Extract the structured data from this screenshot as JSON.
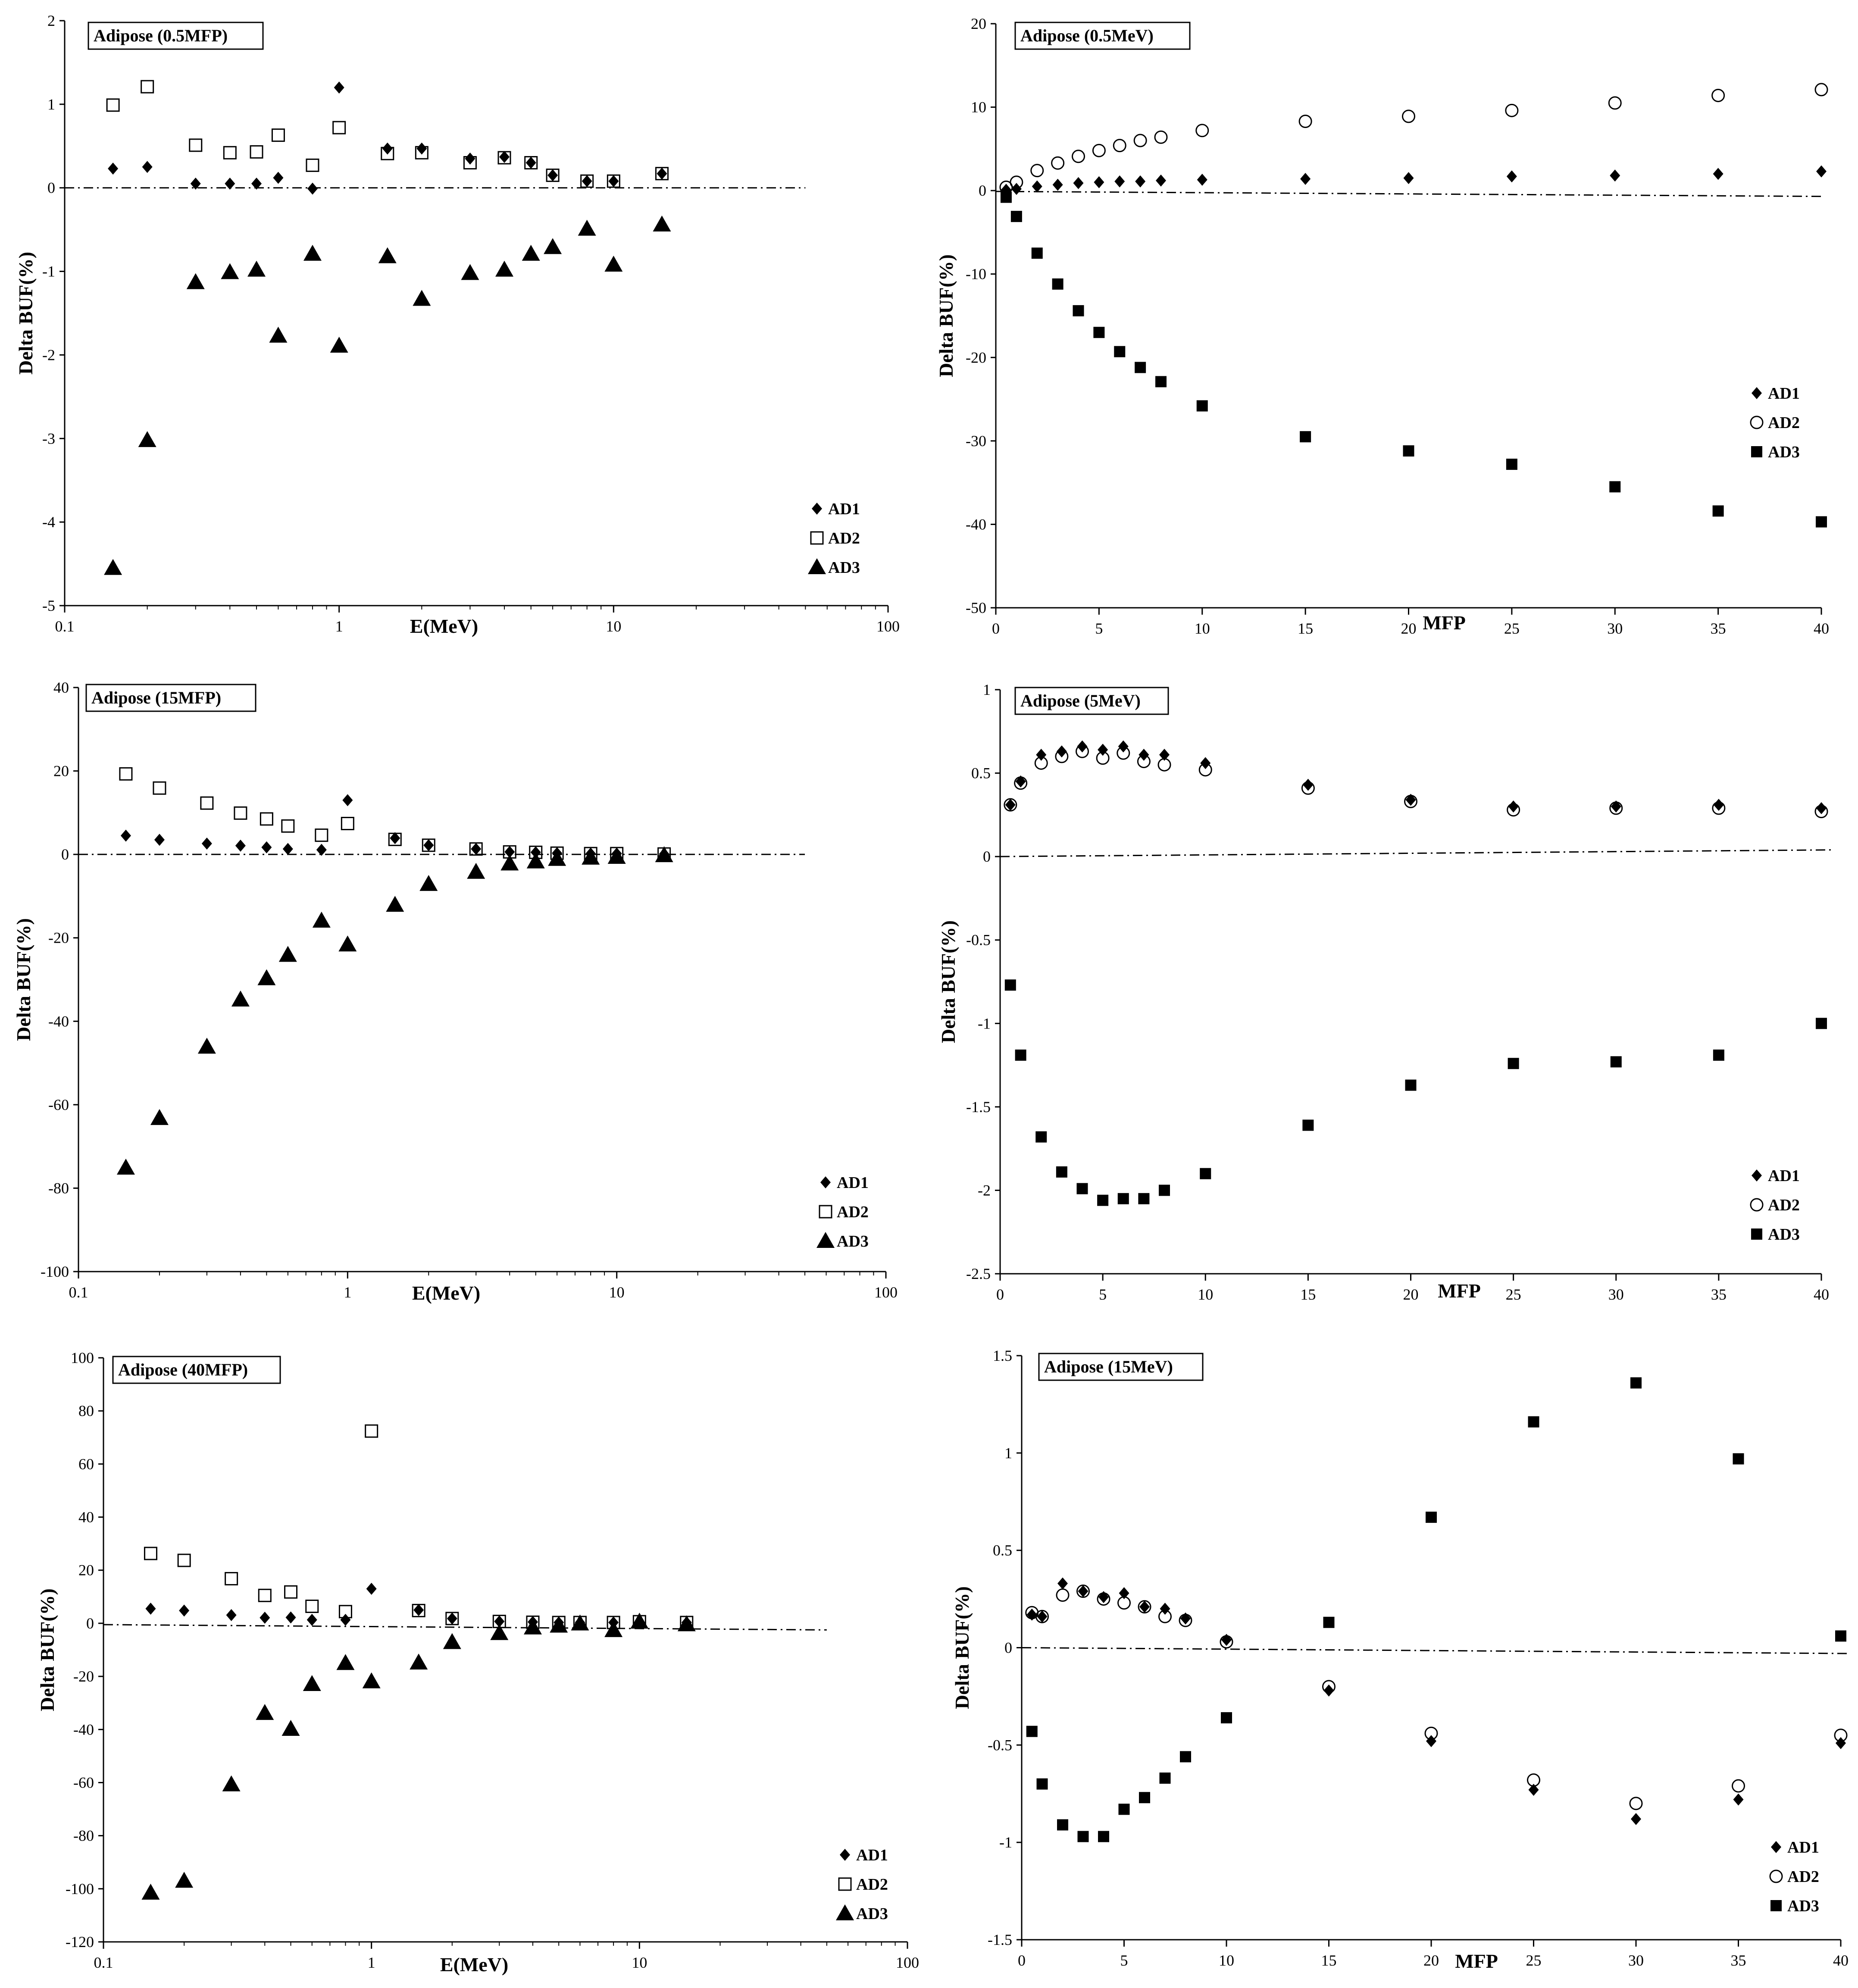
{
  "chart_data": [
    {
      "type": "scatter",
      "title": "Adipose (0.5MFP)",
      "xlabel": "E(MeV)",
      "ylabel": "Delta BUF(%)",
      "xscale": "log",
      "xlim": [
        0.1,
        100
      ],
      "ylim": [
        -5,
        2
      ],
      "xticks": [
        0.1,
        1,
        10,
        100
      ],
      "xtick_labels": [
        "0.1",
        "1",
        "10",
        "100"
      ],
      "yticks": [
        2,
        1,
        0,
        -1,
        -2,
        -3,
        -4,
        -5
      ],
      "ytick_labels": [
        "2",
        "1",
        "0",
        "-1",
        "-2",
        "-3",
        "-4",
        "-5"
      ],
      "x": [
        0.15,
        0.2,
        0.3,
        0.4,
        0.5,
        0.6,
        0.8,
        1,
        1.5,
        2,
        3,
        4,
        5,
        6,
        8,
        10,
        15
      ],
      "series": [
        {
          "name": "AD1",
          "marker": "diamond-filled",
          "values": [
            0.23,
            0.25,
            0.05,
            0.05,
            0.05,
            0.12,
            -0.01,
            1.2,
            0.47,
            0.47,
            0.35,
            0.37,
            0.3,
            0.15,
            0.08,
            0.08,
            0.17
          ]
        },
        {
          "name": "AD2",
          "marker": "square-open",
          "values": [
            0.99,
            1.21,
            0.51,
            0.42,
            0.43,
            0.63,
            0.27,
            0.72,
            0.41,
            0.42,
            0.3,
            0.36,
            0.3,
            0.15,
            0.08,
            0.08,
            0.17
          ]
        },
        {
          "name": "AD3",
          "marker": "triangle-filled",
          "values": [
            -4.55,
            -3.02,
            -1.13,
            -1.01,
            -0.98,
            -1.77,
            -0.79,
            -1.89,
            -0.82,
            -1.33,
            -1.02,
            -0.98,
            -0.79,
            -0.71,
            -0.49,
            -0.92,
            -0.44
          ]
        }
      ],
      "reference_line": {
        "style": "dash-dot",
        "y_start": 0,
        "y_end": 0
      },
      "legend": "bottom-right"
    },
    {
      "type": "scatter",
      "title": "Adipose (0.5MeV)",
      "xlabel": "MFP",
      "ylabel": "Delta BUF(%)",
      "xscale": "linear",
      "xlim": [
        0,
        40
      ],
      "ylim": [
        -50,
        20
      ],
      "xticks": [
        0,
        5,
        10,
        15,
        20,
        25,
        30,
        35,
        40
      ],
      "xtick_labels": [
        "0",
        "5",
        "10",
        "15",
        "20",
        "25",
        "30",
        "35",
        "40"
      ],
      "yticks": [
        20,
        10,
        0,
        -10,
        -20,
        -30,
        -40,
        -50
      ],
      "ytick_labels": [
        "20",
        "10",
        "0",
        "-10",
        "-20",
        "-30",
        "-40",
        "-50"
      ],
      "x": [
        0.5,
        1,
        2,
        3,
        4,
        5,
        6,
        7,
        8,
        10,
        15,
        20,
        25,
        30,
        35,
        40
      ],
      "series": [
        {
          "name": "AD1",
          "marker": "diamond-filled",
          "values": [
            0.1,
            0.2,
            0.5,
            0.7,
            0.9,
            1.0,
            1.1,
            1.1,
            1.2,
            1.3,
            1.4,
            1.5,
            1.7,
            1.8,
            2.0,
            2.3
          ]
        },
        {
          "name": "AD2",
          "marker": "circle-open",
          "values": [
            0.4,
            1.0,
            2.4,
            3.3,
            4.1,
            4.8,
            5.4,
            6.0,
            6.4,
            7.2,
            8.3,
            8.9,
            9.6,
            10.5,
            11.4,
            12.1
          ]
        },
        {
          "name": "AD3",
          "marker": "square-filled",
          "values": [
            -0.8,
            -3.1,
            -7.5,
            -11.2,
            -14.4,
            -17.0,
            -19.3,
            -21.2,
            -22.9,
            -25.8,
            -29.5,
            -31.2,
            -32.8,
            -35.5,
            -38.4,
            -39.7
          ]
        }
      ],
      "reference_line": {
        "style": "dash-dot",
        "y_start": -0.1,
        "y_end": -0.7
      },
      "legend": "bottom-right"
    },
    {
      "type": "scatter",
      "title": "Adipose (15MFP)",
      "xlabel": "E(MeV)",
      "ylabel": "Delta BUF(%)",
      "xscale": "log",
      "xlim": [
        0.1,
        100
      ],
      "ylim": [
        -100,
        40
      ],
      "xticks": [
        0.1,
        1,
        10,
        100
      ],
      "xtick_labels": [
        "0.1",
        "1",
        "10",
        "100"
      ],
      "yticks": [
        40,
        20,
        0,
        -20,
        -40,
        -60,
        -80,
        -100
      ],
      "ytick_labels": [
        "40",
        "20",
        "0",
        "-20",
        "-40",
        "-60",
        "-80",
        "-100"
      ],
      "x": [
        0.15,
        0.2,
        0.3,
        0.4,
        0.5,
        0.6,
        0.8,
        1,
        1.5,
        2,
        3,
        4,
        5,
        6,
        8,
        10,
        15
      ],
      "series": [
        {
          "name": "AD1",
          "marker": "diamond-filled",
          "values": [
            4.5,
            3.5,
            2.6,
            2.1,
            1.7,
            1.3,
            1.1,
            13.0,
            3.9,
            2.2,
            1.3,
            0.6,
            0.5,
            0.3,
            0.2,
            0.2,
            0.1
          ]
        },
        {
          "name": "AD2",
          "marker": "square-open",
          "values": [
            19.3,
            15.9,
            12.3,
            9.9,
            8.5,
            6.8,
            4.6,
            7.4,
            3.6,
            2.2,
            1.3,
            0.6,
            0.5,
            0.3,
            0.2,
            0.2,
            0.1
          ]
        },
        {
          "name": "AD3",
          "marker": "triangle-filled",
          "values": [
            -75.1,
            -63.2,
            -46.1,
            -34.8,
            -29.7,
            -24.1,
            -15.9,
            -21.6,
            -12.1,
            -7.1,
            -4.2,
            -2.2,
            -1.7,
            -1.1,
            -0.8,
            -0.6,
            -0.2
          ]
        }
      ],
      "reference_line": {
        "style": "dash-dot",
        "y_start": 0,
        "y_end": 0
      },
      "legend": "bottom-right"
    },
    {
      "type": "scatter",
      "title": "Adipose (5MeV)",
      "xlabel": "MFP",
      "ylabel": "Delta BUF(%)",
      "xscale": "linear",
      "xlim": [
        0,
        40
      ],
      "ylim": [
        -2.5,
        1
      ],
      "xticks": [
        0,
        5,
        10,
        15,
        20,
        25,
        30,
        35,
        40
      ],
      "xtick_labels": [
        "0",
        "5",
        "10",
        "15",
        "20",
        "25",
        "30",
        "35",
        "40"
      ],
      "yticks": [
        1,
        0.5,
        0,
        -0.5,
        -1,
        -1.5,
        -2,
        -2.5
      ],
      "ytick_labels": [
        "1",
        "0.5",
        "0",
        "-0.5",
        "-1",
        "-1.5",
        "-2",
        "-2.5"
      ],
      "x": [
        0.5,
        1,
        2,
        3,
        4,
        5,
        6,
        7,
        8,
        10,
        15,
        20,
        25,
        30,
        35,
        40
      ],
      "series": [
        {
          "name": "AD1",
          "marker": "diamond-filled",
          "values": [
            0.31,
            0.45,
            0.61,
            0.63,
            0.66,
            0.64,
            0.66,
            0.61,
            0.61,
            0.56,
            0.43,
            0.34,
            0.3,
            0.3,
            0.31,
            0.29
          ]
        },
        {
          "name": "AD2",
          "marker": "circle-open",
          "values": [
            0.31,
            0.44,
            0.56,
            0.6,
            0.63,
            0.59,
            0.62,
            0.57,
            0.55,
            0.52,
            0.41,
            0.33,
            0.28,
            0.29,
            0.29,
            0.27
          ]
        },
        {
          "name": "AD3",
          "marker": "square-filled",
          "values": [
            -0.77,
            -1.19,
            -1.68,
            -1.89,
            -1.99,
            -2.06,
            -2.05,
            -2.05,
            -2.0,
            -1.9,
            -1.61,
            -1.37,
            -1.24,
            -1.23,
            -1.19,
            -1.0
          ]
        }
      ],
      "reference_line": {
        "style": "dash-dot",
        "y_start": 0,
        "y_end": 0.04
      },
      "legend": "bottom-right"
    },
    {
      "type": "scatter",
      "title": "Adipose (40MFP)",
      "xlabel": "E(MeV)",
      "ylabel": "Delta BUF(%)",
      "xscale": "log",
      "xlim": [
        0.1,
        100
      ],
      "ylim": [
        -120,
        100
      ],
      "xticks": [
        0.1,
        1,
        10,
        100
      ],
      "xtick_labels": [
        "0.1",
        "1",
        "10",
        "100"
      ],
      "yticks": [
        100,
        80,
        60,
        40,
        20,
        0,
        -20,
        -40,
        -60,
        -80,
        -100,
        -120
      ],
      "ytick_labels": [
        "100",
        "80",
        "60",
        "40",
        "20",
        "0",
        "-20",
        "-40",
        "-60",
        "-80",
        "-100",
        "-120"
      ],
      "x": [
        0.15,
        0.2,
        0.3,
        0.4,
        0.5,
        0.6,
        0.8,
        1,
        1.5,
        2,
        3,
        4,
        5,
        6,
        8,
        10,
        15
      ],
      "series": [
        {
          "name": "AD1",
          "marker": "diamond-filled",
          "values": [
            5.5,
            4.8,
            3.1,
            2.1,
            2.2,
            1.3,
            1.3,
            13.0,
            5.0,
            1.8,
            0.7,
            0.5,
            0.3,
            0.3,
            0.3,
            0.6,
            0.3
          ]
        },
        {
          "name": "AD2",
          "marker": "square-open",
          "values": [
            26.3,
            23.7,
            16.8,
            10.5,
            11.8,
            6.4,
            4.4,
            72.4,
            4.8,
            1.8,
            0.7,
            0.4,
            0.3,
            0.3,
            0.3,
            0.6,
            0.3
          ]
        },
        {
          "name": "AD3",
          "marker": "triangle-filled",
          "values": [
            -101.5,
            -97.0,
            -60.7,
            -33.8,
            -39.8,
            -22.9,
            -15.0,
            -21.9,
            -14.8,
            -7.1,
            -3.7,
            -1.6,
            -0.9,
            -0.1,
            -2.6,
            0.6,
            -0.4
          ]
        }
      ],
      "reference_line": {
        "style": "dash-dot",
        "y_start": -0.5,
        "y_end": -2.5
      },
      "legend": "bottom-right"
    },
    {
      "type": "scatter",
      "title": "Adipose (15MeV)",
      "xlabel": "MFP",
      "ylabel": "Delta BUF(%)",
      "xscale": "linear",
      "xlim": [
        0,
        40
      ],
      "ylim": [
        -1.5,
        1.5
      ],
      "xticks": [
        0,
        5,
        10,
        15,
        20,
        25,
        30,
        35,
        40
      ],
      "xtick_labels": [
        "0",
        "5",
        "10",
        "15",
        "20",
        "25",
        "30",
        "35",
        "40"
      ],
      "yticks": [
        1.5,
        1,
        0.5,
        0,
        -0.5,
        -1,
        -1.5
      ],
      "ytick_labels": [
        "1.5",
        "1",
        "0.5",
        "0",
        "-0.5",
        "-1",
        "-1.5"
      ],
      "x": [
        0.5,
        1,
        2,
        3,
        4,
        5,
        6,
        7,
        8,
        10,
        15,
        20,
        25,
        30,
        35,
        40
      ],
      "series": [
        {
          "name": "AD1",
          "marker": "diamond-filled",
          "values": [
            0.17,
            0.16,
            0.33,
            0.29,
            0.26,
            0.28,
            0.21,
            0.2,
            0.15,
            0.04,
            -0.22,
            -0.48,
            -0.73,
            -0.88,
            -0.78,
            -0.49
          ]
        },
        {
          "name": "AD2",
          "marker": "circle-open",
          "values": [
            0.18,
            0.16,
            0.27,
            0.29,
            0.25,
            0.23,
            0.21,
            0.16,
            0.14,
            0.03,
            -0.2,
            -0.44,
            -0.68,
            -0.8,
            -0.71,
            -0.45
          ]
        },
        {
          "name": "AD3",
          "marker": "square-filled",
          "values": [
            -0.43,
            -0.7,
            -0.91,
            -0.97,
            -0.97,
            -0.83,
            -0.77,
            -0.67,
            -0.56,
            -0.36,
            0.13,
            0.67,
            1.16,
            1.36,
            0.97,
            0.06
          ]
        }
      ],
      "reference_line": {
        "style": "dash-dot",
        "y_start": 0,
        "y_end": -0.03
      },
      "legend": "bottom-right"
    }
  ]
}
